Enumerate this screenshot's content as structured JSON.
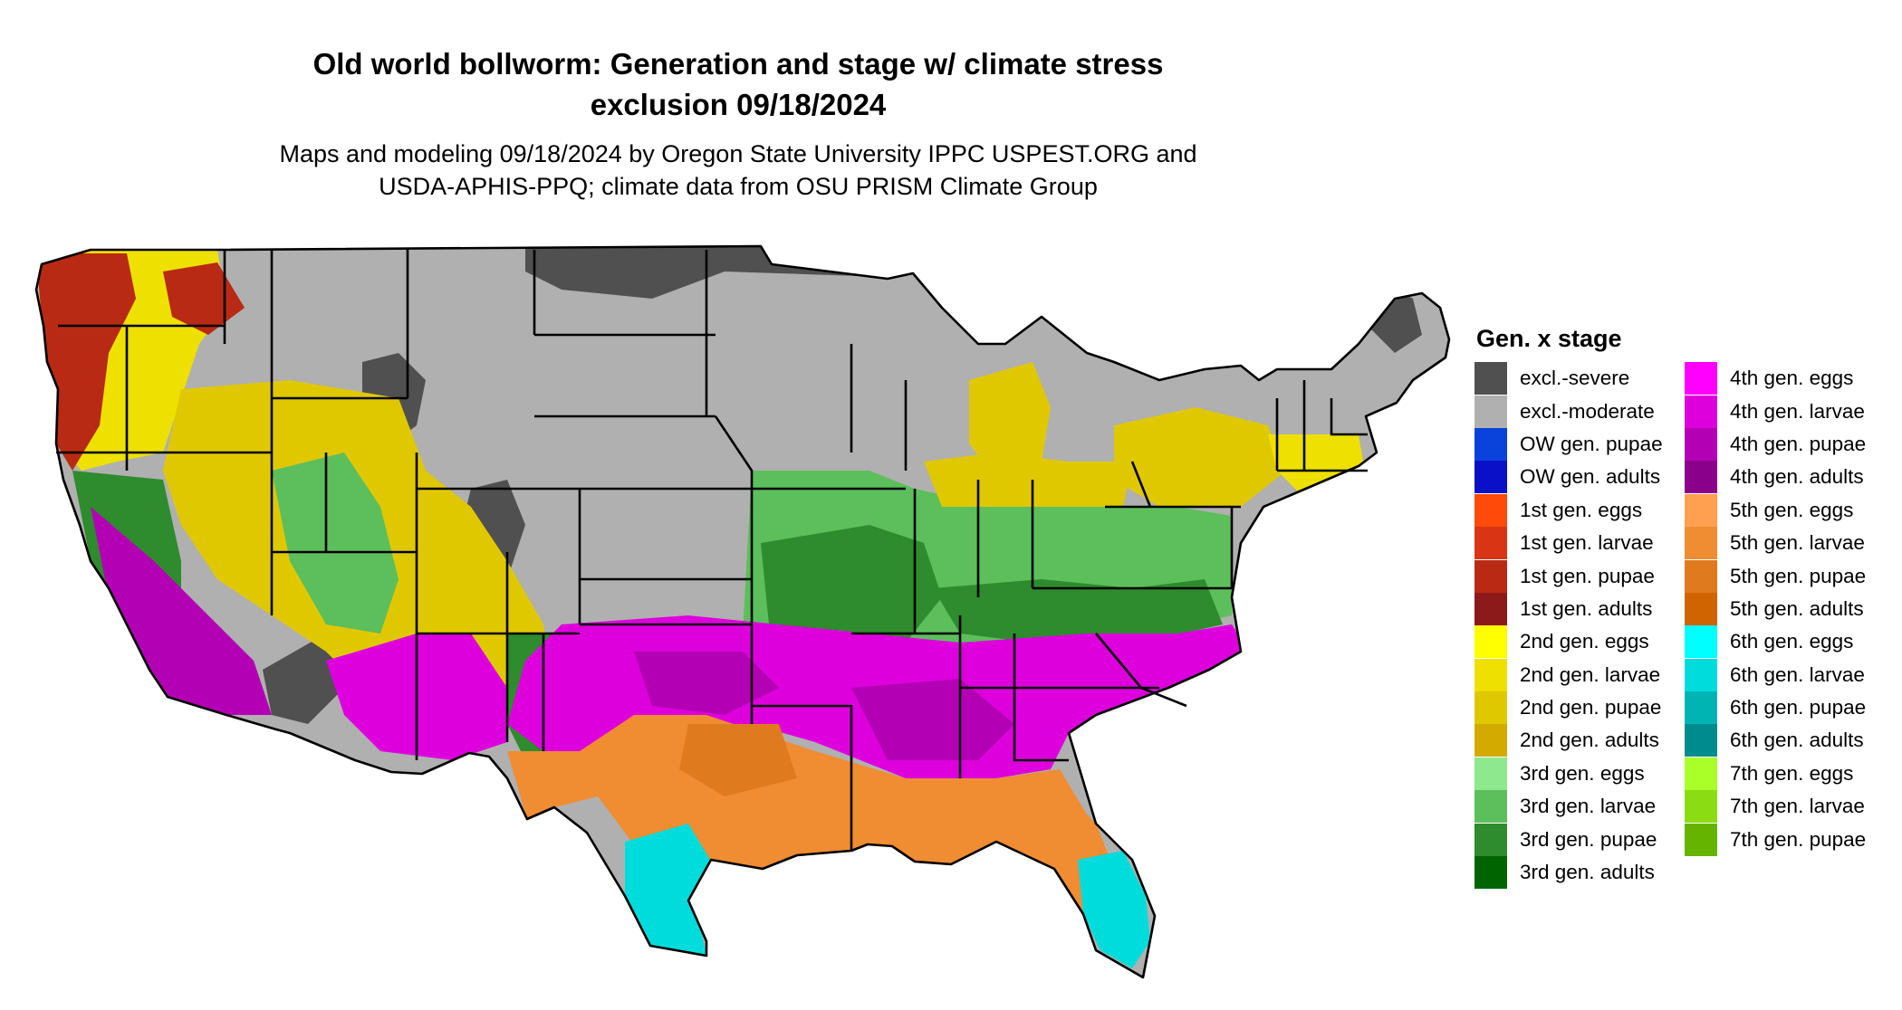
{
  "title": {
    "line1": "Old world bollworm: Generation and stage w/ climate stress",
    "line2": "exclusion 09/18/2024"
  },
  "subtitle": {
    "line1": "Maps and modeling 09/18/2024 by Oregon State University IPPC USPEST.ORG and",
    "line2": "USDA-APHIS-PPQ; climate data from OSU PRISM Climate Group"
  },
  "legend": {
    "title": "Gen. x stage",
    "col1": [
      {
        "label": "excl.-severe",
        "color": "#505050"
      },
      {
        "label": "excl.-moderate",
        "color": "#b0b0b0"
      },
      {
        "label": "OW gen. pupae",
        "color": "#0a42dc"
      },
      {
        "label": "OW gen. adults",
        "color": "#0a10c8"
      },
      {
        "label": "1st gen. eggs",
        "color": "#ff4a0a"
      },
      {
        "label": "1st gen. larvae",
        "color": "#d93514"
      },
      {
        "label": "1st gen. pupae",
        "color": "#b82a14"
      },
      {
        "label": "1st gen. adults",
        "color": "#8c1a1a"
      },
      {
        "label": "2nd gen. eggs",
        "color": "#ffff00"
      },
      {
        "label": "2nd gen. larvae",
        "color": "#eee000"
      },
      {
        "label": "2nd gen. pupae",
        "color": "#e0c800"
      },
      {
        "label": "2nd gen. adults",
        "color": "#d2aa00"
      },
      {
        "label": "3rd gen. eggs",
        "color": "#8ee88e"
      },
      {
        "label": "3rd gen. larvae",
        "color": "#5cbf5c"
      },
      {
        "label": "3rd gen. pupae",
        "color": "#2e8b2e"
      },
      {
        "label": "3rd gen. adults",
        "color": "#006400"
      }
    ],
    "col2": [
      {
        "label": "4th gen. eggs",
        "color": "#ff00ff"
      },
      {
        "label": "4th gen. larvae",
        "color": "#dd00dd"
      },
      {
        "label": "4th gen. pupae",
        "color": "#b400b4"
      },
      {
        "label": "4th gen. adults",
        "color": "#8b008b"
      },
      {
        "label": "5th gen. eggs",
        "color": "#ffa050"
      },
      {
        "label": "5th gen. larvae",
        "color": "#f08c32"
      },
      {
        "label": "5th gen. pupae",
        "color": "#e07a1e"
      },
      {
        "label": "5th gen. adults",
        "color": "#d06400"
      },
      {
        "label": "6th gen. eggs",
        "color": "#00ffff"
      },
      {
        "label": "6th gen. larvae",
        "color": "#00dcdc"
      },
      {
        "label": "6th gen. pupae",
        "color": "#00b4b4"
      },
      {
        "label": "6th gen. adults",
        "color": "#008c8c"
      },
      {
        "label": "7th gen. eggs",
        "color": "#aaff28"
      },
      {
        "label": "7th gen. larvae",
        "color": "#8cdc14"
      },
      {
        "label": "7th gen. pupae",
        "color": "#64b400"
      }
    ]
  }
}
